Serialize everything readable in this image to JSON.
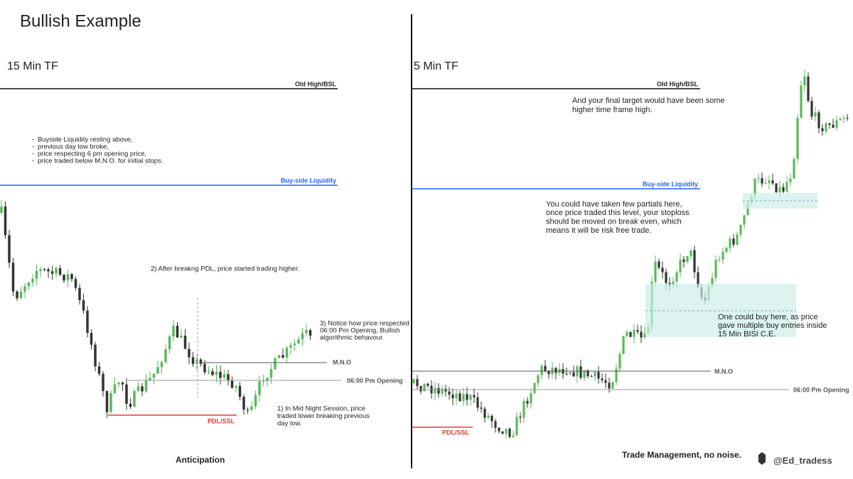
{
  "header": {
    "title": "Bullish Example"
  },
  "left_panel": {
    "timeframe": "15 Min TF",
    "old_high": "Old High/BSL",
    "notes": [
      "Buyside Liquidity resting above,",
      "previous day low broke,",
      "price respecting 6 pm opening price,",
      "price traded below M.N.O. for initial stops."
    ],
    "buy_side": "Buy-side Liquidity",
    "annotation_2": "2)  After breakng PDL, price started trading higher.",
    "annotation_3": [
      "3) Notice how price respected",
      "06:00 Pm Opening, Bullish",
      "algorithmic behavour."
    ],
    "mno": "M.N.O",
    "opening": "06:00 Pm Opening",
    "pdl": "PDL/SSL",
    "annotation_1": [
      "1)  In Mid Night Session, price",
      "traded lower breaking previous",
      "day low."
    ],
    "caption": "Anticipation"
  },
  "right_panel": {
    "timeframe": "5 Min TF",
    "old_high": "Old High/BSL",
    "target_note": [
      "And your final target would have been some",
      "higher time frame high."
    ],
    "buy_side": "Buy-side Liquidity",
    "partials_note": [
      "You could have taken few partials here,",
      "once price traded this level, your stoploss",
      "should be moved on break even, which",
      "means it will be risk free trade."
    ],
    "buy_note": [
      "One could buy here, as price",
      "gave multiple buy entries inside",
      "15 Min BISI C.E."
    ],
    "mno": "M.N.O",
    "opening": "06:00 Pm Opening",
    "pdl": "PDL/SSL",
    "caption": "Trade Management, no noise.",
    "handle": "@Ed_tradess"
  }
}
